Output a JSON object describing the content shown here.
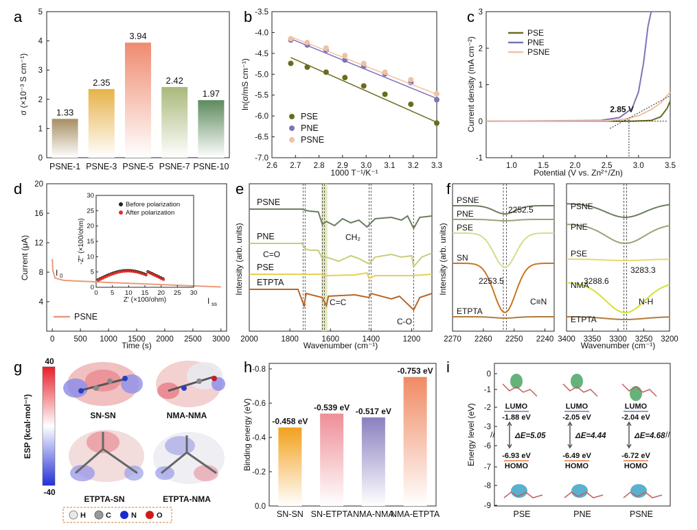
{
  "panels": {
    "a": "a",
    "b": "b",
    "c": "c",
    "d": "d",
    "e": "e",
    "f": "f",
    "g": "g",
    "h": "h",
    "i": "i"
  },
  "colors": {
    "pse": "#6b6b1f",
    "pne": "#7c73b8",
    "psne": "#f0c2a2",
    "bar_a": [
      "#a58f63",
      "#e7b24a",
      "#ef8b70",
      "#a9b97a",
      "#5e8a5e"
    ],
    "bar_h": [
      "#f2a11d",
      "#ee8e97",
      "#8b7fc0",
      "#f08a64"
    ]
  },
  "chart_data": [
    {
      "id": "a",
      "type": "bar",
      "categories": [
        "PSNE-1",
        "PSNE-3",
        "PSNE-5",
        "PSNE-7",
        "PSNE-10"
      ],
      "values": [
        1.33,
        2.35,
        3.94,
        2.42,
        1.97
      ],
      "labels": [
        "1.33",
        "2.35",
        "3.94",
        "2.42",
        "1.97"
      ],
      "ylabel": "σ (×10⁻³ S cm⁻¹)",
      "ylim": [
        0,
        5
      ],
      "yticks": [
        "0",
        "1",
        "2",
        "3",
        "4",
        "5"
      ]
    },
    {
      "id": "b",
      "type": "scatter",
      "xlabel": "1000 T⁻¹/K⁻¹",
      "ylabel": "ln(σ/mS cm⁻¹)",
      "xlim": [
        2.6,
        3.3
      ],
      "ylim": [
        -7.0,
        -3.5
      ],
      "xticks": [
        "2.6",
        "2.7",
        "2.8",
        "2.9",
        "3.0",
        "3.1",
        "3.2",
        "3.3"
      ],
      "yticks": [
        "-3.5",
        "-4.0",
        "-4.5",
        "-5.0",
        "-5.5",
        "-6.0",
        "-6.5",
        "-7.0"
      ],
      "x": [
        2.68,
        2.75,
        2.83,
        2.91,
        2.99,
        3.08,
        3.19,
        3.3
      ],
      "series": [
        {
          "name": "PSE",
          "values": [
            -4.74,
            -4.83,
            -4.95,
            -5.08,
            -5.28,
            -5.48,
            -5.72,
            -6.17
          ],
          "fit": [
            -4.6,
            -6.15
          ]
        },
        {
          "name": "PNE",
          "values": [
            -4.18,
            -4.3,
            -4.42,
            -4.66,
            -4.81,
            -4.99,
            -5.2,
            -5.61
          ],
          "fit": [
            -4.15,
            -5.58
          ]
        },
        {
          "name": "PSNE",
          "values": [
            -4.15,
            -4.24,
            -4.37,
            -4.55,
            -4.74,
            -4.95,
            -5.13,
            -5.47
          ],
          "fit": [
            -4.1,
            -5.48
          ]
        }
      ],
      "legend": [
        "PSE",
        "PNE",
        "PSNE"
      ]
    },
    {
      "id": "c",
      "type": "line",
      "xlabel": "Potential (V vs. Zn²⁺/Zn)",
      "ylabel": "Current density (mA cm⁻²)",
      "xlim": [
        0.6,
        3.5
      ],
      "ylim": [
        -1,
        3
      ],
      "xticks": [
        "1.0",
        "1.5",
        "2.0",
        "2.5",
        "3.0",
        "3.5"
      ],
      "yticks": [
        "-1",
        "0",
        "1",
        "2",
        "3"
      ],
      "series": [
        {
          "name": "PSE",
          "x": [
            0.6,
            2.9,
            3.2,
            3.35,
            3.45,
            3.5
          ],
          "y": [
            0,
            0,
            0.02,
            0.12,
            0.35,
            0.55
          ]
        },
        {
          "name": "PNE",
          "x": [
            0.6,
            2.4,
            2.7,
            2.9,
            3.0,
            3.08,
            3.15,
            3.2
          ],
          "y": [
            0,
            0.02,
            0.1,
            0.35,
            0.8,
            1.6,
            2.6,
            3.0
          ]
        },
        {
          "name": "PSNE",
          "x": [
            0.6,
            2.5,
            2.8,
            3.0,
            3.2,
            3.35,
            3.5
          ],
          "y": [
            0,
            0.01,
            0.06,
            0.15,
            0.32,
            0.5,
            0.8
          ]
        }
      ],
      "annotation": "2.85 V",
      "legend": [
        "PSE",
        "PNE",
        "PSNE"
      ]
    },
    {
      "id": "d",
      "type": "line",
      "xlabel": "Time (s)",
      "ylabel": "Current (μA)",
      "xlim": [
        -100,
        3100
      ],
      "ylim": [
        0,
        20
      ],
      "xticks": [
        "0",
        "500",
        "1000",
        "1500",
        "2000",
        "2500",
        "3000"
      ],
      "yticks": [
        "4",
        "8",
        "12",
        "16",
        "20"
      ],
      "series": [
        {
          "name": "PSNE",
          "x": [
            0,
            10,
            50,
            200,
            1000,
            2000,
            3000
          ],
          "y": [
            9.8,
            8.2,
            7.2,
            6.9,
            6.6,
            6.3,
            6.0
          ]
        }
      ],
      "labels": {
        "i0": "I",
        "i0sub": "0",
        "iss": "I",
        "isssub": "ss"
      },
      "inset": {
        "xlabel": "Z' (×100/ohm)",
        "ylabel": "-Z'' (×100/ohm)",
        "xticks": [
          "0",
          "5",
          "10",
          "15",
          "20",
          "25",
          "30"
        ],
        "yticks": [
          "0",
          "5",
          "10",
          "15",
          "20",
          "25",
          "30"
        ],
        "legend": [
          "Before polarization",
          "After polarization"
        ]
      }
    },
    {
      "id": "e",
      "type": "line",
      "xlabel": "Wavenumber (cm⁻¹)",
      "ylabel": "Intensity (arb. units)",
      "xticks": [
        "2000",
        "1800",
        "1600",
        "1400",
        "1200"
      ],
      "series": [
        "PSNE",
        "PNE",
        "PSE",
        "ETPTA"
      ],
      "annotations": [
        "C=O",
        "CH₂",
        "C=C",
        "C-O"
      ]
    },
    {
      "id": "f",
      "type": "line",
      "xlabel": "Wavenumber (cm⁻¹)",
      "ylabel": "Intensity (arb. units)",
      "xticks_left": [
        "2270",
        "2260",
        "2250",
        "2240"
      ],
      "xticks_right": [
        "3400",
        "3350",
        "3300",
        "3250",
        "3200"
      ],
      "series_left": [
        "PSNE",
        "PNE",
        "PSE",
        "SN",
        "ETPTA"
      ],
      "series_right": [
        "PSNE",
        "PNE",
        "PSE",
        "NMA",
        "ETPTA"
      ],
      "annotations": [
        "2252.5",
        "2253.5",
        "C≡N",
        "3283.3",
        "3288.6",
        "N-H"
      ]
    },
    {
      "id": "h",
      "type": "bar",
      "categories": [
        "SN-SN",
        "SN-ETPTA",
        "NMA-NMA",
        "NMA-ETPTA"
      ],
      "values": [
        -0.458,
        -0.539,
        -0.517,
        -0.753
      ],
      "labels": [
        "-0.458 eV",
        "-0.539 eV",
        "-0.517 eV",
        "-0.753 eV"
      ],
      "ylabel": "Binding energy (eV)",
      "ylim": [
        0,
        -0.8
      ],
      "yticks": [
        "0.0",
        "-0.2",
        "-0.4",
        "-0.6",
        "-0.8"
      ]
    },
    {
      "id": "i",
      "type": "diagram",
      "categories": [
        "PSE",
        "PNE",
        "PSNE"
      ],
      "lumo": [
        "-1.88 eV",
        "-2.05 eV",
        "-2.04 eV"
      ],
      "homo": [
        "-6.93 eV",
        "-6.49 eV",
        "-6.72 eV"
      ],
      "gap": [
        "ΔE=5.05",
        "ΔE=4.44",
        "ΔE=4.68"
      ],
      "lumo_label": "LUMO",
      "homo_label": "HOMO",
      "ylabel": "Energy level (eV)",
      "yticks": [
        "0",
        "-1",
        "-2",
        "-3",
        "-6",
        "-7",
        "-8",
        "-9"
      ]
    }
  ],
  "panel_g": {
    "title": "ESP (kcal·mol⁻¹)",
    "max": "40",
    "min": "-40",
    "molecules": [
      "SN-SN",
      "NMA-NMA",
      "ETPTA-SN",
      "ETPTA-NMA"
    ],
    "legend": [
      "H",
      "C",
      "N",
      "O"
    ]
  }
}
